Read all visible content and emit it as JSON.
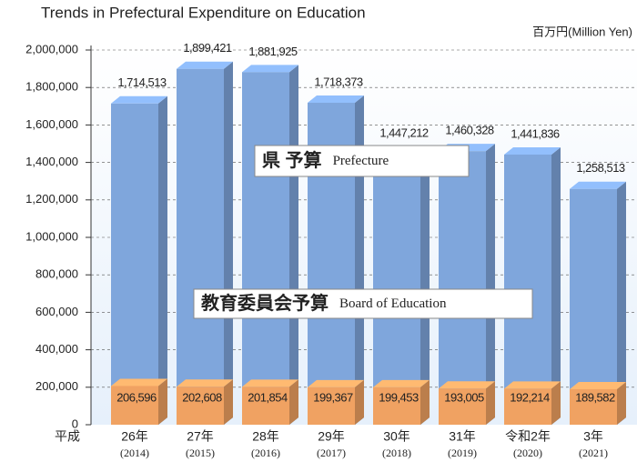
{
  "chart_data": {
    "type": "bar3d",
    "title": "Trends in Prefectural Expenditure on Education",
    "unit_label": "百万円(Million Yen)",
    "era_label": "平成",
    "categories": [
      "26年",
      "27年",
      "28年",
      "29年",
      "30年",
      "31年",
      "令和2年",
      "3年"
    ],
    "category_years": [
      "(2014)",
      "(2015)",
      "(2016)",
      "(2017)",
      "(2018)",
      "(2019)",
      "(2020)",
      "(2021)"
    ],
    "series": [
      {
        "name": "県 予算",
        "name_en": "Prefecture",
        "color": "#7fa6dc",
        "values": [
          1714513,
          1899421,
          1881925,
          1718373,
          1447212,
          1460328,
          1441836,
          1258513
        ],
        "value_labels": [
          "1,714,513",
          "1,899,421",
          "1,881,925",
          "1,718,373",
          "1,447,212",
          "1,460,328",
          "1,441,836",
          "1,258,513"
        ]
      },
      {
        "name": "教育委員会予算",
        "name_en": "Board of Education",
        "color": "#f0a262",
        "values": [
          206596,
          202608,
          201854,
          199367,
          199453,
          193005,
          192214,
          189582
        ],
        "value_labels": [
          "206,596",
          "202,608",
          "201,854",
          "199,367",
          "199,453",
          "193,005",
          "192,214",
          "189,582"
        ]
      }
    ],
    "ylim": [
      0,
      2000000
    ],
    "yticks": [
      0,
      {
        "value": 200000,
        "label": "200,000"
      },
      {
        "value": 400000,
        "label": "400,000"
      },
      {
        "value": 600000,
        "label": "600,000"
      },
      {
        "value": 800000,
        "label": "800,000"
      },
      {
        "value": 1000000,
        "label": "1,000,000"
      },
      {
        "value": 1200000,
        "label": "1,200,000"
      },
      {
        "value": 1400000,
        "label": "1,400,000"
      },
      {
        "value": 1600000,
        "label": "1,600,000"
      },
      {
        "value": 1800000,
        "label": "1,800,000"
      },
      {
        "value": 2000000,
        "label": "2,000,000"
      }
    ],
    "grid": true
  }
}
